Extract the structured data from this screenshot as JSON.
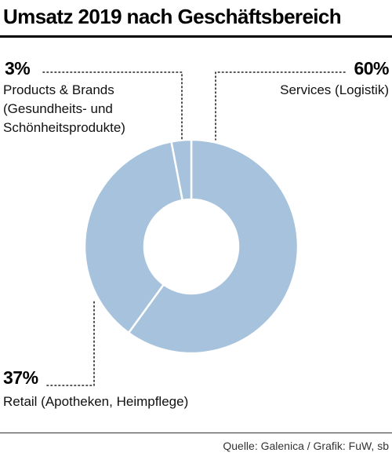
{
  "title": "Umsatz 2019 nach Geschäftsbereich",
  "source": "Quelle: Galenica / Grafik: FuW, sb",
  "chart_data": {
    "type": "pie",
    "variant": "donut",
    "title": "Umsatz 2019 nach Geschäftsbereich",
    "unit": "%",
    "slices": [
      {
        "label": "Services (Logistik)",
        "value": 60,
        "value_label": "60%",
        "color": "#a7c2dc"
      },
      {
        "label": "Retail (Apotheken, Heimpflege)",
        "value": 37,
        "value_label": "37%",
        "color": "#a7c2dc"
      },
      {
        "label": "Products & Brands (Gesundheits- und Schönheitsprodukte)",
        "label_lines": [
          "Products & Brands",
          "(Gesundheits- und",
          "Schönheitsprodukte)"
        ],
        "value": 3,
        "value_label": "3%",
        "color": "#a7c2dc"
      }
    ],
    "legend": "none"
  }
}
